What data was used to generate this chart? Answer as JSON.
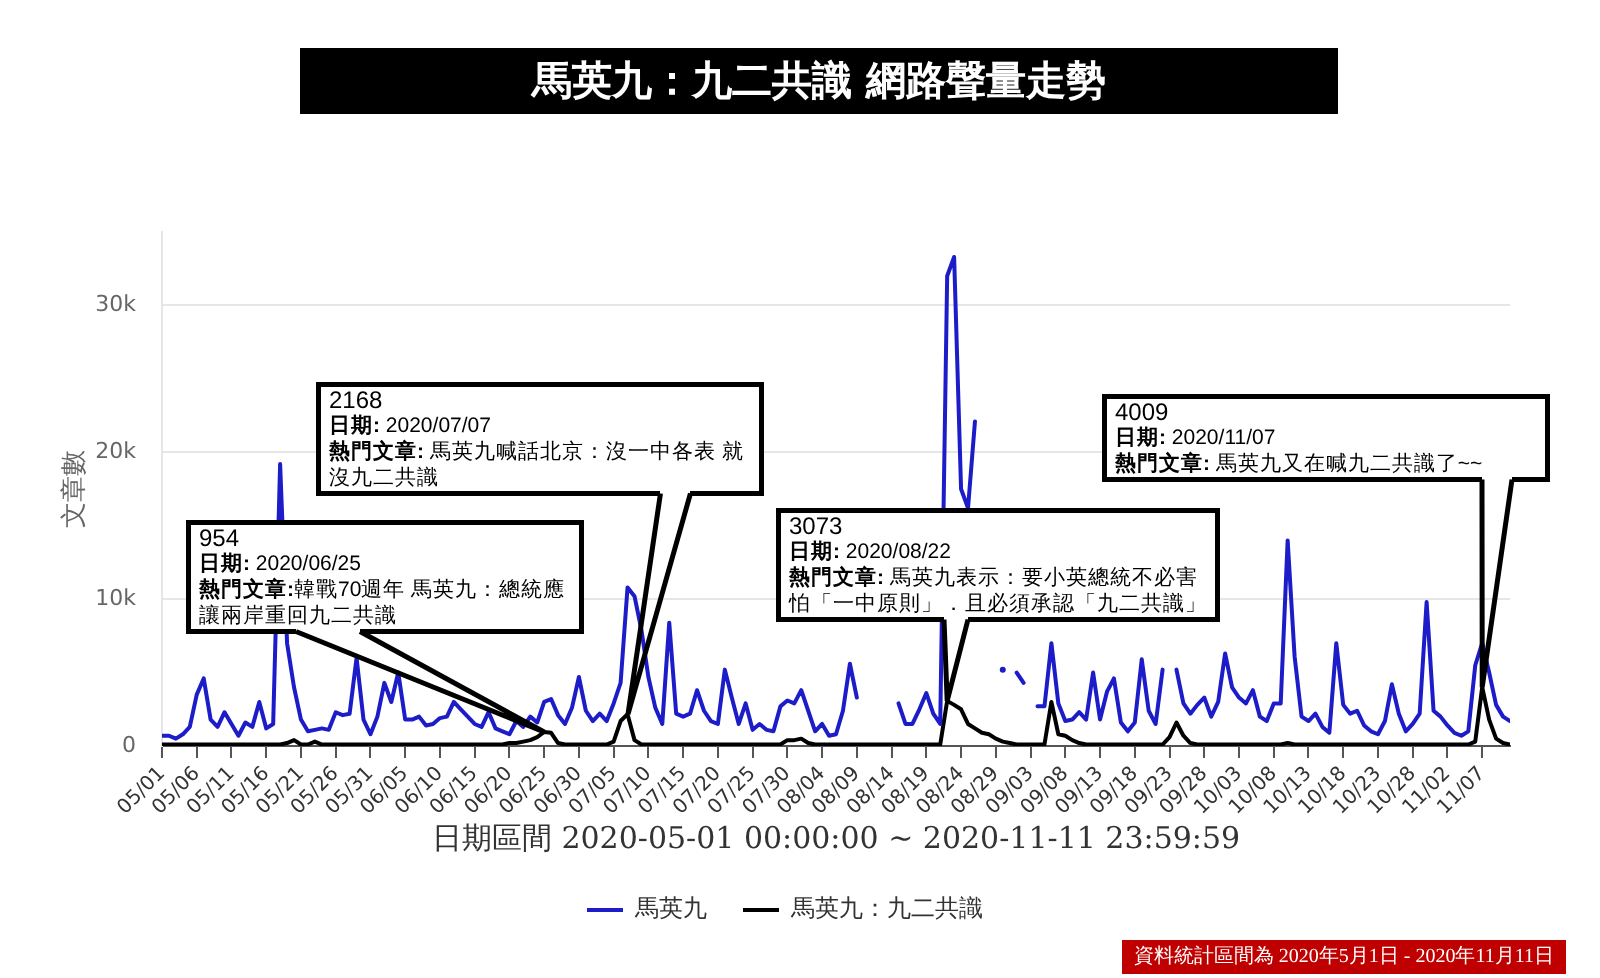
{
  "chart_data": {
    "type": "line",
    "title": "馬英九：九二共識 網路聲量走勢",
    "xlabel": "日期區間 2020-05-01 00:00:00 ~ 2020-11-11 23:59:59",
    "ylabel": "文章數",
    "xlim": [
      "2020-05-01",
      "2020-11-11"
    ],
    "xticks": [
      {
        "value": "2020-05-01",
        "label": "05/01"
      },
      {
        "value": "2020-05-06",
        "label": "05/06"
      },
      {
        "value": "2020-05-11",
        "label": "05/11"
      },
      {
        "value": "2020-05-16",
        "label": "05/16"
      },
      {
        "value": "2020-05-21",
        "label": "05/21"
      },
      {
        "value": "2020-05-26",
        "label": "05/26"
      },
      {
        "value": "2020-05-31",
        "label": "05/31"
      },
      {
        "value": "2020-06-05",
        "label": "06/05"
      },
      {
        "value": "2020-06-10",
        "label": "06/10"
      },
      {
        "value": "2020-06-15",
        "label": "06/15"
      },
      {
        "value": "2020-06-20",
        "label": "06/20"
      },
      {
        "value": "2020-06-25",
        "label": "06/25"
      },
      {
        "value": "2020-06-30",
        "label": "06/30"
      },
      {
        "value": "2020-07-05",
        "label": "07/05"
      },
      {
        "value": "2020-07-10",
        "label": "07/10"
      },
      {
        "value": "2020-07-15",
        "label": "07/15"
      },
      {
        "value": "2020-07-20",
        "label": "07/20"
      },
      {
        "value": "2020-07-25",
        "label": "07/25"
      },
      {
        "value": "2020-07-30",
        "label": "07/30"
      },
      {
        "value": "2020-08-04",
        "label": "08/04"
      },
      {
        "value": "2020-08-09",
        "label": "08/09"
      },
      {
        "value": "2020-08-14",
        "label": "08/14"
      },
      {
        "value": "2020-08-19",
        "label": "08/19"
      },
      {
        "value": "2020-08-24",
        "label": "08/24"
      },
      {
        "value": "2020-08-29",
        "label": "08/29"
      },
      {
        "value": "2020-09-03",
        "label": "09/03"
      },
      {
        "value": "2020-09-08",
        "label": "09/08"
      },
      {
        "value": "2020-09-13",
        "label": "09/13"
      },
      {
        "value": "2020-09-18",
        "label": "09/18"
      },
      {
        "value": "2020-09-23",
        "label": "09/23"
      },
      {
        "value": "2020-09-28",
        "label": "09/28"
      },
      {
        "value": "2020-10-03",
        "label": "10/03"
      },
      {
        "value": "2020-10-08",
        "label": "10/08"
      },
      {
        "value": "2020-10-13",
        "label": "10/13"
      },
      {
        "value": "2020-10-18",
        "label": "10/18"
      },
      {
        "value": "2020-10-23",
        "label": "10/23"
      },
      {
        "value": "2020-10-28",
        "label": "10/28"
      },
      {
        "value": "2020-11-02",
        "label": "11/02"
      },
      {
        "value": "2020-11-07",
        "label": "11/07"
      }
    ],
    "ylim": [
      0,
      35000
    ],
    "yticks": [
      0,
      {
        "value": 10000,
        "label": "10k"
      },
      {
        "value": 20000,
        "label": "20k"
      },
      {
        "value": 30000,
        "label": "30k"
      }
    ],
    "grid": "y",
    "legend": "bottom",
    "x": [
      "2020-05-01",
      "2020-05-02",
      "2020-05-03",
      "2020-05-04",
      "2020-05-05",
      "2020-05-06",
      "2020-05-07",
      "2020-05-08",
      "2020-05-09",
      "2020-05-10",
      "2020-05-11",
      "2020-05-12",
      "2020-05-13",
      "2020-05-14",
      "2020-05-15",
      "2020-05-16",
      "2020-05-17",
      "2020-05-18",
      "2020-05-19",
      "2020-05-20",
      "2020-05-21",
      "2020-05-22",
      "2020-05-23",
      "2020-05-24",
      "2020-05-25",
      "2020-05-26",
      "2020-05-27",
      "2020-05-28",
      "2020-05-29",
      "2020-05-30",
      "2020-05-31",
      "2020-06-01",
      "2020-06-02",
      "2020-06-03",
      "2020-06-04",
      "2020-06-05",
      "2020-06-06",
      "2020-06-07",
      "2020-06-08",
      "2020-06-09",
      "2020-06-10",
      "2020-06-11",
      "2020-06-12",
      "2020-06-13",
      "2020-06-14",
      "2020-06-15",
      "2020-06-16",
      "2020-06-17",
      "2020-06-18",
      "2020-06-19",
      "2020-06-20",
      "2020-06-21",
      "2020-06-22",
      "2020-06-23",
      "2020-06-24",
      "2020-06-25",
      "2020-06-26",
      "2020-06-27",
      "2020-06-28",
      "2020-06-29",
      "2020-06-30",
      "2020-07-01",
      "2020-07-02",
      "2020-07-03",
      "2020-07-04",
      "2020-07-05",
      "2020-07-06",
      "2020-07-07",
      "2020-07-08",
      "2020-07-09",
      "2020-07-10",
      "2020-07-11",
      "2020-07-12",
      "2020-07-13",
      "2020-07-14",
      "2020-07-15",
      "2020-07-16",
      "2020-07-17",
      "2020-07-18",
      "2020-07-19",
      "2020-07-20",
      "2020-07-21",
      "2020-07-22",
      "2020-07-23",
      "2020-07-24",
      "2020-07-25",
      "2020-07-26",
      "2020-07-27",
      "2020-07-28",
      "2020-07-29",
      "2020-07-30",
      "2020-07-31",
      "2020-08-01",
      "2020-08-02",
      "2020-08-03",
      "2020-08-04",
      "2020-08-05",
      "2020-08-06",
      "2020-08-07",
      "2020-08-08",
      "2020-08-09",
      "2020-08-10",
      "2020-08-11",
      "2020-08-12",
      "2020-08-13",
      "2020-08-14",
      "2020-08-15",
      "2020-08-16",
      "2020-08-17",
      "2020-08-18",
      "2020-08-19",
      "2020-08-20",
      "2020-08-21",
      "2020-08-22",
      "2020-08-23",
      "2020-08-24",
      "2020-08-25",
      "2020-08-26",
      "2020-08-27",
      "2020-08-28",
      "2020-08-29",
      "2020-08-30",
      "2020-08-31",
      "2020-09-01",
      "2020-09-02",
      "2020-09-03",
      "2020-09-04",
      "2020-09-05",
      "2020-09-06",
      "2020-09-07",
      "2020-09-08",
      "2020-09-09",
      "2020-09-10",
      "2020-09-11",
      "2020-09-12",
      "2020-09-13",
      "2020-09-14",
      "2020-09-15",
      "2020-09-16",
      "2020-09-17",
      "2020-09-18",
      "2020-09-19",
      "2020-09-20",
      "2020-09-21",
      "2020-09-22",
      "2020-09-23",
      "2020-09-24",
      "2020-09-25",
      "2020-09-26",
      "2020-09-27",
      "2020-09-28",
      "2020-09-29",
      "2020-09-30",
      "2020-10-01",
      "2020-10-02",
      "2020-10-03",
      "2020-10-04",
      "2020-10-05",
      "2020-10-06",
      "2020-10-07",
      "2020-10-08",
      "2020-10-09",
      "2020-10-10",
      "2020-10-11",
      "2020-10-12",
      "2020-10-13",
      "2020-10-14",
      "2020-10-15",
      "2020-10-16",
      "2020-10-17",
      "2020-10-18",
      "2020-10-19",
      "2020-10-20",
      "2020-10-21",
      "2020-10-22",
      "2020-10-23",
      "2020-10-24",
      "2020-10-25",
      "2020-10-26",
      "2020-10-27",
      "2020-10-28",
      "2020-10-29",
      "2020-10-30",
      "2020-10-31",
      "2020-11-01",
      "2020-11-02",
      "2020-11-03",
      "2020-11-04",
      "2020-11-05",
      "2020-11-06",
      "2020-11-07",
      "2020-11-08",
      "2020-11-09",
      "2020-11-10",
      "2020-11-11"
    ],
    "series": [
      {
        "name": "馬英九",
        "color": "#1c1cc8",
        "values": [
          700,
          700,
          500,
          800,
          1300,
          3500,
          4600,
          1800,
          1300,
          2300,
          1500,
          700,
          1600,
          1300,
          3000,
          1200,
          1500,
          19200,
          7000,
          4000,
          1800,
          1000,
          1100,
          1200,
          1100,
          2300,
          2100,
          2200,
          6000,
          1800,
          800,
          2000,
          4300,
          3000,
          5000,
          1800,
          1800,
          2000,
          1400,
          1500,
          1900,
          2000,
          3000,
          2500,
          2000,
          1500,
          1300,
          2300,
          1200,
          1000,
          800,
          1700,
          1300,
          2000,
          1600,
          3000,
          3200,
          2100,
          1500,
          2600,
          4700,
          2400,
          1700,
          2200,
          1700,
          2900,
          4300,
          10800,
          10200,
          7900,
          4700,
          2600,
          1500,
          8400,
          2200,
          2000,
          2200,
          3800,
          2400,
          1700,
          1500,
          5200,
          3300,
          1500,
          2900,
          1100,
          1500,
          1100,
          1000,
          2700,
          3100,
          2900,
          3800,
          2400,
          1000,
          1500,
          700,
          800,
          2400,
          5600,
          3300,
          null,
          null,
          null,
          null,
          null,
          2900,
          1500,
          1500,
          2500,
          3600,
          2200,
          1500,
          32000,
          33300,
          17500,
          16200,
          22100,
          null,
          null,
          null,
          5200,
          null,
          5000,
          4300,
          null,
          2700,
          2700,
          7000,
          2900,
          1700,
          1800,
          2300,
          1800,
          5000,
          1800,
          3700,
          4600,
          1600,
          1000,
          1600,
          5900,
          2400,
          1500,
          5200,
          null,
          5200,
          2900,
          2200,
          2800,
          3300,
          2000,
          3000,
          6300,
          4000,
          3300,
          2900,
          3800,
          2000,
          1700,
          2900,
          2900,
          14000,
          6100,
          2000,
          1700,
          2200,
          1300,
          900,
          7000,
          2800,
          2200,
          2400,
          1400,
          1000,
          800,
          1700,
          4200,
          2200,
          1000,
          1500,
          2200,
          9800,
          2400,
          2000,
          1400,
          900,
          700,
          1000,
          5500,
          7000,
          5000,
          2800,
          2000,
          1700
        ]
      },
      {
        "name": "馬英九：九二共識",
        "color": "#000000",
        "values": [
          100,
          100,
          100,
          100,
          100,
          100,
          100,
          100,
          100,
          100,
          100,
          100,
          100,
          100,
          100,
          100,
          100,
          100,
          200,
          400,
          100,
          100,
          300,
          100,
          100,
          100,
          100,
          100,
          100,
          100,
          100,
          100,
          100,
          100,
          100,
          100,
          100,
          100,
          100,
          100,
          100,
          100,
          100,
          100,
          100,
          100,
          100,
          100,
          100,
          100,
          200,
          200,
          300,
          400,
          600,
          954,
          900,
          200,
          100,
          100,
          100,
          100,
          100,
          100,
          100,
          300,
          1700,
          2168,
          400,
          100,
          100,
          100,
          100,
          100,
          100,
          100,
          100,
          100,
          100,
          100,
          100,
          100,
          100,
          100,
          100,
          100,
          100,
          100,
          100,
          100,
          400,
          400,
          500,
          200,
          100,
          100,
          100,
          100,
          100,
          100,
          100,
          100,
          100,
          100,
          100,
          100,
          100,
          100,
          100,
          100,
          100,
          100,
          100,
          3073,
          2800,
          2500,
          1500,
          1200,
          900,
          800,
          500,
          300,
          200,
          100,
          100,
          100,
          100,
          100,
          3000,
          800,
          700,
          400,
          200,
          100,
          100,
          100,
          100,
          100,
          100,
          100,
          100,
          100,
          100,
          100,
          100,
          600,
          1600,
          700,
          200,
          100,
          100,
          100,
          100,
          100,
          100,
          100,
          100,
          100,
          100,
          100,
          100,
          100,
          200,
          100,
          100,
          100,
          100,
          100,
          100,
          100,
          100,
          100,
          100,
          100,
          100,
          100,
          100,
          100,
          100,
          100,
          100,
          100,
          100,
          100,
          100,
          100,
          100,
          100,
          100,
          300,
          4009,
          1800,
          500,
          200,
          100
        ]
      }
    ],
    "annotations": [
      {
        "text": "954\n日期: 2020/06/25\n熱門文章:韓戰70週年 馬英九：總統應讓兩岸重回九二共識",
        "x": "2020-06-25",
        "y": 954
      },
      {
        "text": "2168\n日期: 2020/07/07\n熱門文章: 馬英九喊話北京：沒一中各表 就沒九二共識",
        "x": "2020-07-07",
        "y": 2168
      },
      {
        "text": "3073\n日期: 2020/08/22\n熱門文章: 馬英九表示：要小英總統不必害怕「一中原則」．且必須承認「九二共識」",
        "x": "2020-08-22",
        "y": 3073
      },
      {
        "text": "4009\n日期: 2020/11/07\n熱門文章: 馬英九又在喊九二共識了~~",
        "x": "2020-11-07",
        "y": 4009
      },
      "資料統計區間為 2020年5月1日 - 2020年11月11日"
    ]
  }
}
